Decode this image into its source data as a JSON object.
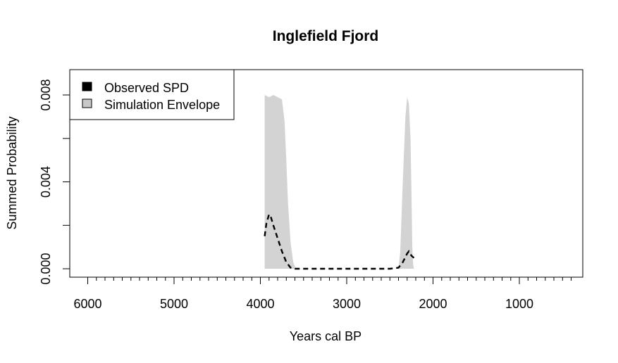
{
  "chart_data": {
    "type": "area",
    "title": "Inglefield Fjord",
    "xlabel": "Years cal BP",
    "ylabel": "Summed Probability",
    "xlim": [
      6000,
      300
    ],
    "x_reversed": true,
    "ylim": [
      0,
      0.008
    ],
    "x_ticks": [
      "6000",
      "5000",
      "4000",
      "3000",
      "2000",
      "1000"
    ],
    "x_tick_values": [
      6000,
      5000,
      4000,
      3000,
      2000,
      1000
    ],
    "y_ticks": [
      "0.000",
      "0.004",
      "0.008"
    ],
    "y_tick_values": [
      0,
      0.004,
      0.008
    ],
    "legend": {
      "placement": "top-left",
      "entries": [
        {
          "label": "Observed SPD",
          "color": "#000000"
        },
        {
          "label": "Simulation Envelope",
          "color": "#c8c8c8"
        }
      ]
    },
    "series": [
      {
        "name": "Simulation Envelope",
        "kind": "envelope",
        "color": "#d3d3d3",
        "x": [
          3950,
          3900,
          3850,
          3800,
          3750,
          3720,
          3700,
          3680,
          3650,
          3620,
          3600,
          3580,
          2400,
          2380,
          2350,
          2320,
          2300,
          2280,
          2260,
          2250,
          2240,
          2230,
          2220
        ],
        "lower": [
          0,
          0,
          0,
          0,
          0,
          0,
          0,
          0,
          0,
          0,
          0,
          0,
          0,
          0,
          0,
          0,
          0,
          0,
          0,
          0,
          0,
          0,
          0
        ],
        "upper": [
          0.008,
          0.0079,
          0.008,
          0.0079,
          0.0078,
          0.0068,
          0.005,
          0.003,
          0.0012,
          0.0003,
          0.0001,
          0,
          0,
          0.0008,
          0.004,
          0.007,
          0.0079,
          0.0076,
          0.006,
          0.0035,
          0.001,
          0.0002,
          0
        ]
      },
      {
        "name": "Observed SPD",
        "kind": "line",
        "color": "#000000",
        "dash": true,
        "x": [
          3950,
          3930,
          3900,
          3880,
          3850,
          3800,
          3750,
          3700,
          3650,
          3600,
          3550,
          3500,
          3000,
          2500,
          2400,
          2350,
          2300,
          2280,
          2250,
          2220
        ],
        "y": [
          0.0015,
          0.0021,
          0.0025,
          0.0024,
          0.002,
          0.0014,
          0.0008,
          0.0003,
          5e-05,
          0,
          0,
          0,
          0,
          0,
          5e-05,
          0.0003,
          0.0007,
          0.0008,
          0.0006,
          0.0005
        ]
      }
    ]
  }
}
